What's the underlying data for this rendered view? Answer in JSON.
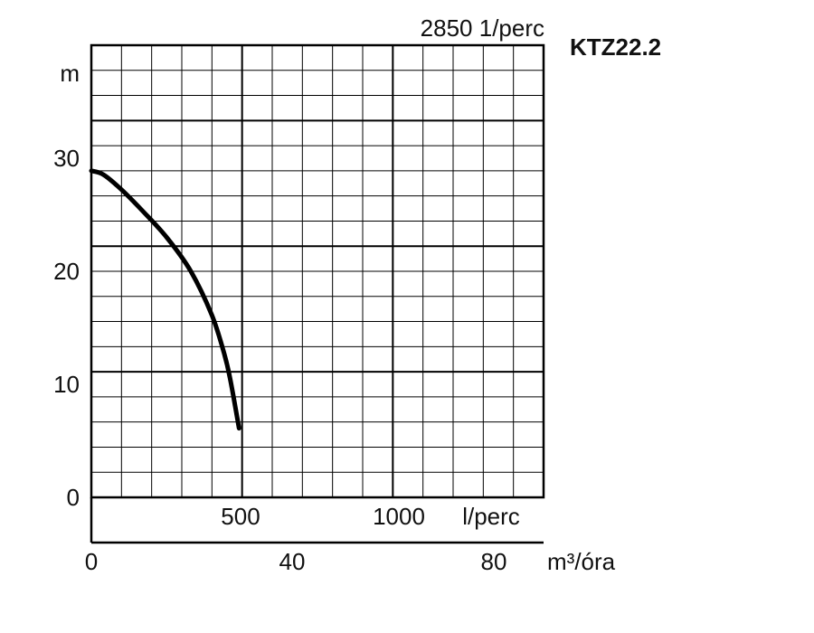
{
  "chart_data": {
    "type": "line",
    "title": "KTZ22.2",
    "subtitle": "2850 1/perc",
    "ylabel": "m",
    "ylim": [
      0,
      36
    ],
    "yticks": [
      "0",
      "10",
      "20",
      "30"
    ],
    "x_primary": {
      "label": "l/perc",
      "ticks": [
        "500",
        "1000"
      ],
      "range": [
        0,
        1500
      ]
    },
    "x_secondary": {
      "label": "m³/óra",
      "ticks": [
        "0",
        "40",
        "80"
      ],
      "range": [
        0,
        90
      ]
    },
    "grid": true,
    "series": [
      {
        "x_unit": "l/perc",
        "x": [
          0,
          40,
          100,
          170,
          250,
          330,
          400,
          440,
          460,
          490
        ],
        "y": [
          26,
          25.7,
          24.5,
          22.8,
          20.7,
          18,
          14.5,
          11.5,
          9.5,
          5.5
        ]
      }
    ],
    "colors": {
      "line": "#000000",
      "grid": "#000000"
    }
  }
}
